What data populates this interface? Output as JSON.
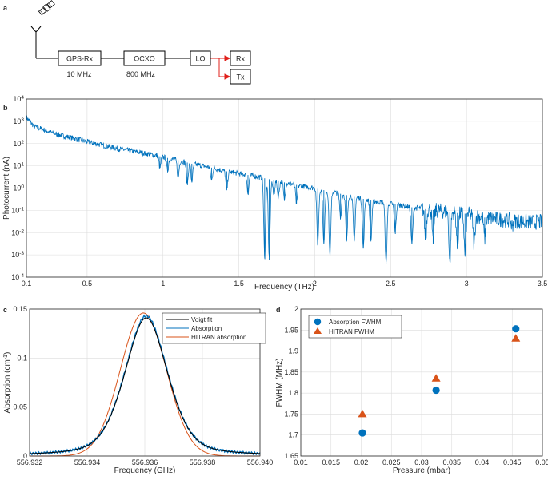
{
  "panels": {
    "a": "a",
    "b": "b",
    "c": "c",
    "d": "d"
  },
  "block_diagram": {
    "blocks": [
      "GPS-Rx",
      "OCXO",
      "LO",
      "Rx",
      "Tx"
    ],
    "freq_labels": [
      "10 MHz",
      "800 MHz"
    ],
    "colors": {
      "line": "#000000",
      "rf_arrow": "#e0201b"
    }
  },
  "chart_data": [
    {
      "panel": "b",
      "type": "line",
      "xlabel": "Frequency (THz)",
      "ylabel": "Photocurrent (nA)",
      "xlim": [
        0.1,
        3.5
      ],
      "ylim_log10": [
        -4,
        4
      ],
      "y_scale": "log",
      "x_ticks": [
        "0.1",
        "0.5",
        "1",
        "1.5",
        "2",
        "2.5",
        "3",
        "3.5"
      ],
      "y_ticks": [
        "10-4",
        "10-3",
        "10-2",
        "10-1",
        "100",
        "101",
        "102",
        "103",
        "104"
      ],
      "grid": true,
      "color": "#0072bd",
      "series": [
        {
          "x": [
            0.1,
            0.15,
            0.2,
            0.3,
            0.4,
            0.5,
            0.6,
            0.7,
            0.8,
            0.9,
            1.0,
            1.1,
            1.2,
            1.3,
            1.4,
            1.5,
            1.6,
            1.7,
            1.8,
            1.9,
            2.0,
            2.1,
            2.2,
            2.3,
            2.4,
            2.5,
            2.6,
            2.7,
            2.8,
            2.9,
            3.0,
            3.1,
            3.2,
            3.3,
            3.4,
            3.5
          ],
          "y": [
            1500,
            600,
            450,
            260,
            180,
            120,
            85,
            60,
            45,
            35,
            25,
            18,
            12,
            9,
            6,
            4.5,
            3.5,
            2.5,
            1.8,
            1.3,
            1.0,
            0.7,
            0.5,
            0.35,
            0.25,
            0.2,
            0.15,
            0.12,
            0.1,
            0.08,
            0.07,
            0.05,
            0.04,
            0.035,
            0.03,
            0.03
          ]
        }
      ],
      "dips": [
        {
          "x": 0.98,
          "y": 8
        },
        {
          "x": 1.03,
          "y": 6
        },
        {
          "x": 1.1,
          "y": 3
        },
        {
          "x": 1.16,
          "y": 1.5
        },
        {
          "x": 1.19,
          "y": 2
        },
        {
          "x": 1.32,
          "y": 2.2
        },
        {
          "x": 1.42,
          "y": 0.8
        },
        {
          "x": 1.56,
          "y": 0.6
        },
        {
          "x": 1.67,
          "y": 0.0007
        },
        {
          "x": 1.7,
          "y": 0.0006
        },
        {
          "x": 1.73,
          "y": 0.5
        },
        {
          "x": 1.76,
          "y": 0.4
        },
        {
          "x": 1.8,
          "y": 0.3
        },
        {
          "x": 1.88,
          "y": 0.2
        },
        {
          "x": 2.02,
          "y": 0.003
        },
        {
          "x": 2.06,
          "y": 0.003
        },
        {
          "x": 2.1,
          "y": 0.001
        },
        {
          "x": 2.17,
          "y": 0.05
        },
        {
          "x": 2.21,
          "y": 0.004
        },
        {
          "x": 2.26,
          "y": 0.004
        },
        {
          "x": 2.32,
          "y": 0.002
        },
        {
          "x": 2.37,
          "y": 0.004
        },
        {
          "x": 2.47,
          "y": 0.0004
        },
        {
          "x": 2.53,
          "y": 0.01
        },
        {
          "x": 2.64,
          "y": 0.003
        },
        {
          "x": 2.73,
          "y": 0.005
        },
        {
          "x": 2.78,
          "y": 0.003
        },
        {
          "x": 2.89,
          "y": 0.0005
        },
        {
          "x": 2.94,
          "y": 0.002
        },
        {
          "x": 2.99,
          "y": 0.001
        },
        {
          "x": 3.05,
          "y": 0.003
        },
        {
          "x": 3.12,
          "y": 0.005
        },
        {
          "x": 3.3,
          "y": 0.02
        }
      ]
    },
    {
      "panel": "c",
      "type": "line",
      "xlabel": "Frequency (GHz)",
      "ylabel": "Absorption (cm-1)",
      "xlim": [
        556.932,
        556.94
      ],
      "ylim": [
        0,
        0.15
      ],
      "x_ticks": [
        "556.932",
        "556.934",
        "556.936",
        "556.938",
        "556.940"
      ],
      "y_ticks": [
        "0",
        "0.05",
        "0.1",
        "0.15"
      ],
      "grid": true,
      "legend_position": "top-right",
      "series": [
        {
          "name": "Voigt fit",
          "color": "#000000",
          "center": 556.93605,
          "peak": 0.141,
          "fwhm": 0.0018
        },
        {
          "name": "Absorption",
          "color": "#0072bd",
          "center": 556.93605,
          "peak": 0.143,
          "fwhm": 0.0018
        },
        {
          "name": "HITRAN absorption",
          "color": "#d95319",
          "center": 556.93595,
          "peak": 0.146,
          "fwhm": 0.00188
        }
      ]
    },
    {
      "panel": "d",
      "type": "scatter",
      "xlabel": "Pressure (mbar)",
      "ylabel": "FWHM (MHz)",
      "xlim": [
        0.01,
        0.05
      ],
      "ylim": [
        1.65,
        2.0
      ],
      "x_ticks": [
        "0.01",
        "0.015",
        "0.02",
        "0.025",
        "0.03",
        "0.035",
        "0.04",
        "0.045",
        "0.05"
      ],
      "y_ticks": [
        "1.65",
        "1.7",
        "1.75",
        "1.8",
        "1.85",
        "1.9",
        "1.95",
        "2"
      ],
      "grid": true,
      "legend_position": "top-left",
      "series": [
        {
          "name": "Absorption FWHM",
          "color": "#0072bd",
          "marker": "circle",
          "x": [
            0.0202,
            0.0324,
            0.0456
          ],
          "y": [
            1.705,
            1.807,
            1.953
          ]
        },
        {
          "name": "HITRAN FWHM",
          "color": "#d95319",
          "marker": "triangle",
          "x": [
            0.0202,
            0.0324,
            0.0456
          ],
          "y": [
            1.75,
            1.835,
            1.93
          ]
        }
      ]
    }
  ]
}
